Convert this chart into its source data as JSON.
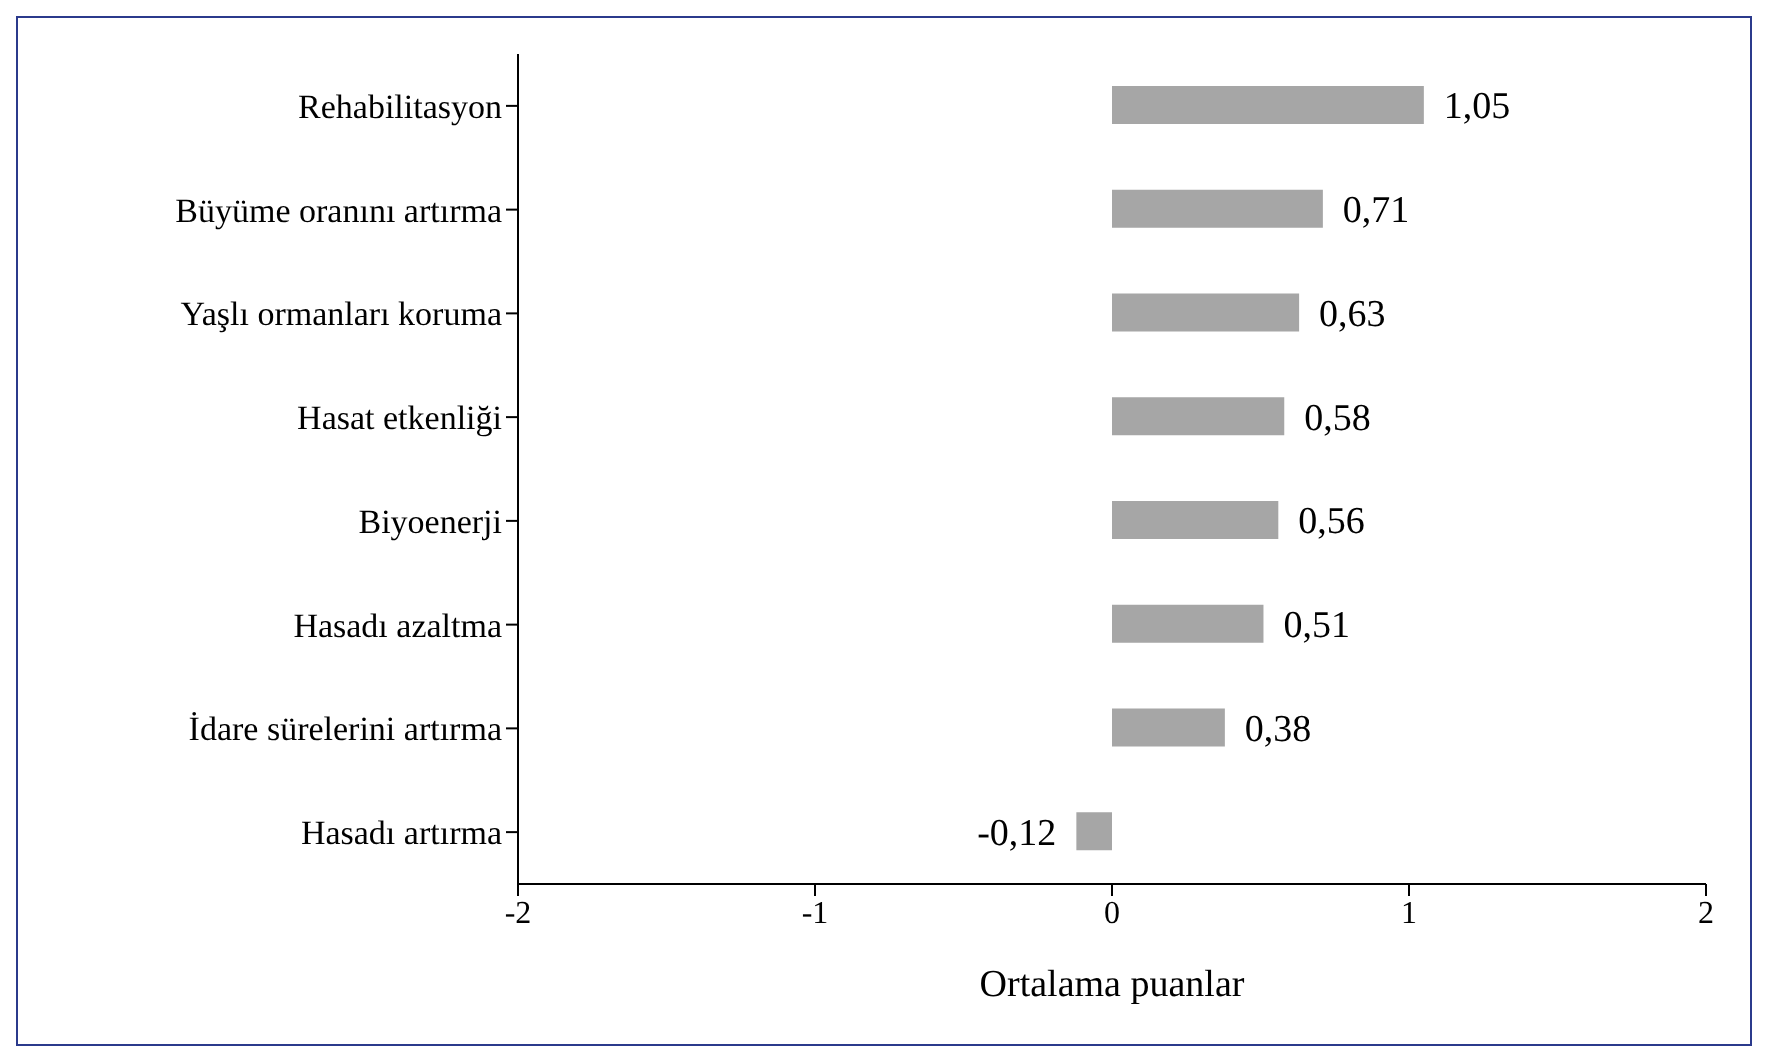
{
  "chart_data": {
    "type": "bar",
    "orientation": "horizontal",
    "xlabel": "Ortalama puanlar",
    "categories": [
      "Rehabilitasyon",
      "Büyüme oranını artırma",
      "Yaşlı ormanları koruma",
      "Hasat etkenliği",
      "Biyoenerji",
      "Hasadı azaltma",
      "İdare sürelerini artırma",
      "Hasadı artırma"
    ],
    "values": [
      1.05,
      0.71,
      0.63,
      0.58,
      0.56,
      0.51,
      0.38,
      -0.12
    ],
    "value_labels": [
      "1,05",
      "0,71",
      "0,63",
      "0,58",
      "0,56",
      "0,51",
      "0,38",
      "-0,12"
    ],
    "color": "#a6a6a6",
    "xlim": [
      -2,
      2
    ],
    "xticks": [
      -2,
      -1,
      0,
      1,
      2
    ],
    "grid": false,
    "legend": false
  }
}
